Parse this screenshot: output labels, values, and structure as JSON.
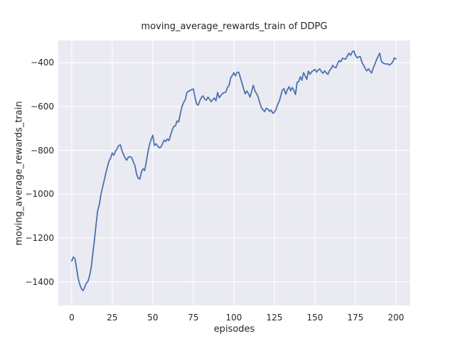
{
  "figure": {
    "title": "moving_average_rewards_train of DDPG",
    "xlabel": "episodes",
    "ylabel": "moving_average_rewards_train"
  },
  "chart_data": {
    "type": "line",
    "title": "moving_average_rewards_train of DDPG",
    "xlabel": "episodes",
    "ylabel": "moving_average_rewards_train",
    "grid": true,
    "legend_position": "none",
    "x_mode": "index",
    "xticks": [
      0,
      25,
      50,
      75,
      100,
      125,
      150,
      175,
      200
    ],
    "yticks": [
      -400,
      -600,
      -800,
      -1000,
      -1200,
      -1400
    ],
    "xlim": [
      -8.3,
      208.8
    ],
    "ylim": [
      -1508,
      -298.5
    ],
    "style": {
      "figure_bg": "#ffffff",
      "axes_bg": "#eaeaf2",
      "grid_color": "#ffffff",
      "text_color": "#262626",
      "line_color": "#4c72b0"
    },
    "series": [
      {
        "name": "moving_average_rewards_train",
        "color": "#4c72b0",
        "values": [
          -1305,
          -1287,
          -1295,
          -1340,
          -1385,
          -1412,
          -1432,
          -1440,
          -1424,
          -1406,
          -1398,
          -1372,
          -1335,
          -1270,
          -1210,
          -1140,
          -1075,
          -1048,
          -1000,
          -970,
          -938,
          -905,
          -875,
          -848,
          -836,
          -812,
          -822,
          -803,
          -793,
          -778,
          -775,
          -801,
          -820,
          -836,
          -845,
          -830,
          -829,
          -834,
          -853,
          -870,
          -908,
          -928,
          -931,
          -898,
          -884,
          -892,
          -852,
          -808,
          -772,
          -750,
          -731,
          -778,
          -770,
          -780,
          -788,
          -785,
          -770,
          -753,
          -760,
          -748,
          -755,
          -730,
          -707,
          -690,
          -688,
          -666,
          -670,
          -632,
          -600,
          -582,
          -570,
          -537,
          -530,
          -527,
          -522,
          -520,
          -556,
          -588,
          -594,
          -574,
          -559,
          -551,
          -566,
          -571,
          -557,
          -566,
          -578,
          -569,
          -561,
          -574,
          -536,
          -560,
          -549,
          -541,
          -537,
          -534,
          -514,
          -504,
          -470,
          -459,
          -446,
          -460,
          -444,
          -443,
          -468,
          -492,
          -519,
          -542,
          -529,
          -541,
          -557,
          -529,
          -503,
          -529,
          -541,
          -556,
          -582,
          -605,
          -615,
          -623,
          -608,
          -611,
          -622,
          -616,
          -631,
          -626,
          -613,
          -591,
          -576,
          -549,
          -524,
          -518,
          -544,
          -524,
          -509,
          -528,
          -513,
          -526,
          -545,
          -490,
          -486,
          -464,
          -480,
          -445,
          -461,
          -476,
          -438,
          -453,
          -441,
          -436,
          -430,
          -443,
          -434,
          -428,
          -441,
          -448,
          -437,
          -446,
          -453,
          -436,
          -427,
          -412,
          -421,
          -422,
          -404,
          -390,
          -396,
          -379,
          -382,
          -383,
          -369,
          -357,
          -366,
          -351,
          -346,
          -366,
          -378,
          -373,
          -372,
          -398,
          -411,
          -426,
          -437,
          -428,
          -438,
          -447,
          -424,
          -406,
          -387,
          -371,
          -357,
          -394,
          -401,
          -404,
          -406,
          -405,
          -411,
          -404,
          -397,
          -378,
          -382
        ]
      }
    ]
  }
}
